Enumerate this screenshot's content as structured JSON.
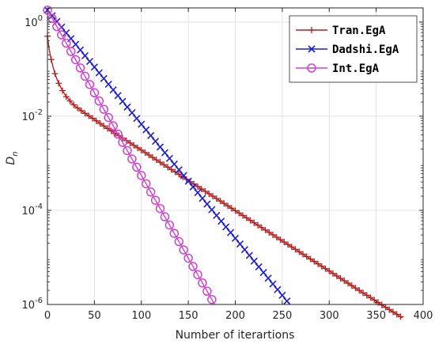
{
  "chart_data": {
    "type": "line",
    "title": "",
    "xlabel": "Number of iterartions",
    "ylabel": "D",
    "ylabel_sub": "n",
    "xlim": [
      0,
      400
    ],
    "ylim": [
      1e-06,
      2
    ],
    "yscale": "log",
    "grid": true,
    "legend_position": "top-right",
    "x_ticks": [
      0,
      50,
      100,
      150,
      200,
      250,
      300,
      350,
      400
    ],
    "x_tick_labels": [
      "0",
      "50",
      "100",
      "150",
      "200",
      "250",
      "300",
      "350",
      "400"
    ],
    "y_ticks": [
      1e-06,
      0.0001,
      0.01,
      1
    ],
    "y_tick_labels": [
      {
        "base": "10",
        "exp": "-6"
      },
      {
        "base": "10",
        "exp": "-4"
      },
      {
        "base": "10",
        "exp": "-2"
      },
      {
        "base": "10",
        "exp": "0"
      }
    ],
    "series": [
      {
        "name": "Tran.EgA",
        "color": "#b22222",
        "marker": "plus",
        "marker_every": 4,
        "x": [
          0,
          2,
          4,
          6,
          8,
          10,
          12,
          16,
          20,
          25,
          30,
          40,
          50,
          60,
          70,
          80,
          100,
          120,
          140,
          160,
          180,
          200,
          220,
          240,
          260,
          280,
          300,
          320,
          340,
          360,
          378
        ],
        "y": [
          0.5,
          0.25,
          0.16,
          0.11,
          0.08,
          0.062,
          0.05,
          0.035,
          0.026,
          0.02,
          0.016,
          0.0115,
          0.0085,
          0.0062,
          0.0046,
          0.0034,
          0.0019,
          0.00105,
          0.00058,
          0.00032,
          0.000178,
          9.85e-05,
          5.45e-05,
          3.02e-05,
          1.67e-05,
          9.25e-06,
          5.12e-06,
          2.83e-06,
          1.57e-06,
          8.7e-07,
          5.2e-07
        ]
      },
      {
        "name": "Dadshi.EgA",
        "color": "#1f1fcf",
        "marker": "x",
        "marker_every": 5,
        "x": [
          0,
          258
        ],
        "y": [
          1.8,
          1e-06
        ]
      },
      {
        "name": "Int.EgA",
        "color": "#cc44cc",
        "marker": "circle",
        "marker_every": 5,
        "x": [
          0,
          178
        ],
        "y": [
          1.8,
          1e-06
        ]
      }
    ]
  }
}
